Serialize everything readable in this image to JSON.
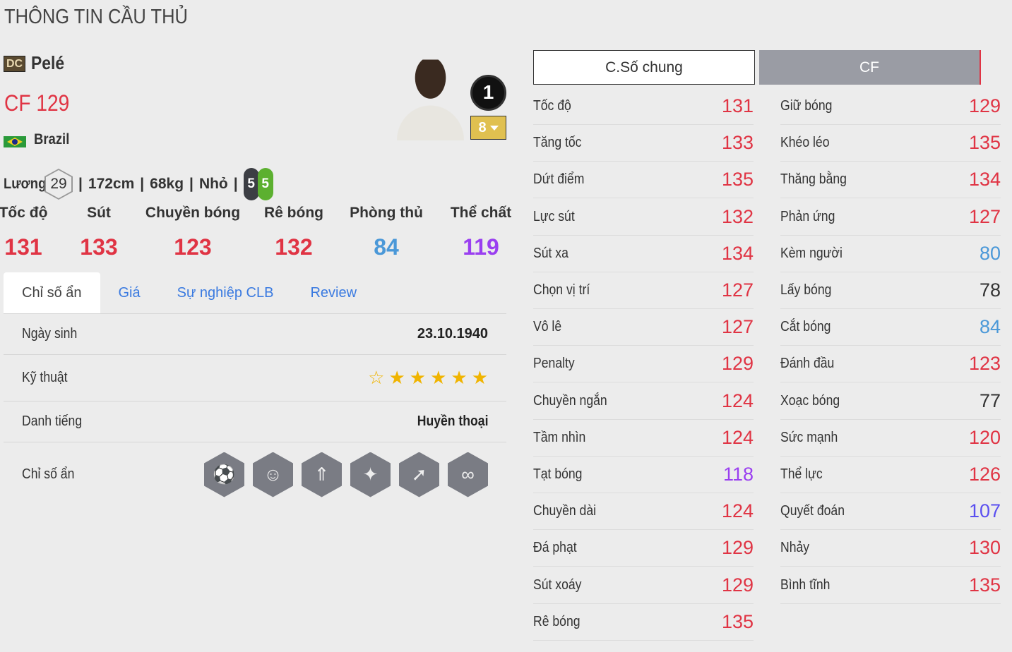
{
  "title": "THÔNG TIN CẦU THỦ",
  "player": {
    "season_badge": "DC",
    "name": "Pelé",
    "position_ovr": "CF 129",
    "nation": "Brazil",
    "salary_label": "Lương",
    "salary": "29",
    "height": "172cm",
    "weight": "68kg",
    "body": "Nhỏ",
    "weak_foot_left": "5",
    "weak_foot_right": "5",
    "ovr_badge": "1",
    "upgrade_level": "8"
  },
  "main_stats": [
    {
      "label": "Tốc độ",
      "value": "131",
      "color": "#e03444"
    },
    {
      "label": "Sút",
      "value": "133",
      "color": "#e03444"
    },
    {
      "label": "Chuyền bóng",
      "value": "123",
      "color": "#e03444"
    },
    {
      "label": "Rê bóng",
      "value": "132",
      "color": "#e03444"
    },
    {
      "label": "Phòng thủ",
      "value": "84",
      "color": "#4a98d8"
    },
    {
      "label": "Thể chất",
      "value": "119",
      "color": "#9a3ff0"
    }
  ],
  "tabs": [
    {
      "label": "Chỉ số ẩn",
      "active": true
    },
    {
      "label": "Giá"
    },
    {
      "label": "Sự nghiệp CLB"
    },
    {
      "label": "Review"
    }
  ],
  "details": {
    "birth_label": "Ngày sinh",
    "birth": "23.10.1940",
    "skill_label": "Kỹ thuật",
    "skill_stars": 5,
    "skill_max": 6,
    "fame_label": "Danh tiếng",
    "fame": "Huyền thoại",
    "traits_label": "Chỉ số ẩn",
    "traits": [
      "finesse-shot-icon",
      "flair-icon",
      "power-header-icon",
      "speed-dribbler-icon",
      "outside-foot-icon",
      "playmaker-icon"
    ]
  },
  "stat_tabs": {
    "general": "C.Số chung",
    "position": "CF"
  },
  "stats_left": [
    {
      "k": "Tốc độ",
      "v": "131",
      "color": "#e03444"
    },
    {
      "k": "Tăng tốc",
      "v": "133",
      "color": "#e03444"
    },
    {
      "k": "Dứt điểm",
      "v": "135",
      "color": "#e03444"
    },
    {
      "k": "Lực sút",
      "v": "132",
      "color": "#e03444"
    },
    {
      "k": "Sút xa",
      "v": "134",
      "color": "#e03444"
    },
    {
      "k": "Chọn vị trí",
      "v": "127",
      "color": "#e03444"
    },
    {
      "k": "Vô lê",
      "v": "127",
      "color": "#e03444"
    },
    {
      "k": "Penalty",
      "v": "129",
      "color": "#e03444"
    },
    {
      "k": "Chuyền ngắn",
      "v": "124",
      "color": "#e03444"
    },
    {
      "k": "Tầm nhìn",
      "v": "124",
      "color": "#e03444"
    },
    {
      "k": "Tạt bóng",
      "v": "118",
      "color": "#9a3ff0"
    },
    {
      "k": "Chuyền dài",
      "v": "124",
      "color": "#e03444"
    },
    {
      "k": "Đá phạt",
      "v": "129",
      "color": "#e03444"
    },
    {
      "k": "Sút xoáy",
      "v": "129",
      "color": "#e03444"
    },
    {
      "k": "Rê bóng",
      "v": "135",
      "color": "#e03444"
    }
  ],
  "stats_right": [
    {
      "k": "Giữ bóng",
      "v": "129",
      "color": "#e03444"
    },
    {
      "k": "Khéo léo",
      "v": "135",
      "color": "#e03444"
    },
    {
      "k": "Thăng bằng",
      "v": "134",
      "color": "#e03444"
    },
    {
      "k": "Phản ứng",
      "v": "127",
      "color": "#e03444"
    },
    {
      "k": "Kèm người",
      "v": "80",
      "color": "#4a98d8"
    },
    {
      "k": "Lấy bóng",
      "v": "78",
      "color": "#333333"
    },
    {
      "k": "Cắt bóng",
      "v": "84",
      "color": "#4a98d8"
    },
    {
      "k": "Đánh đầu",
      "v": "123",
      "color": "#e03444"
    },
    {
      "k": "Xoạc bóng",
      "v": "77",
      "color": "#333333"
    },
    {
      "k": "Sức mạnh",
      "v": "120",
      "color": "#e03444"
    },
    {
      "k": "Thể lực",
      "v": "126",
      "color": "#e03444"
    },
    {
      "k": "Quyết đoán",
      "v": "107",
      "color": "#5a4ff0"
    },
    {
      "k": "Nhảy",
      "v": "130",
      "color": "#e03444"
    },
    {
      "k": "Bình tĩnh",
      "v": "135",
      "color": "#e03444"
    }
  ]
}
